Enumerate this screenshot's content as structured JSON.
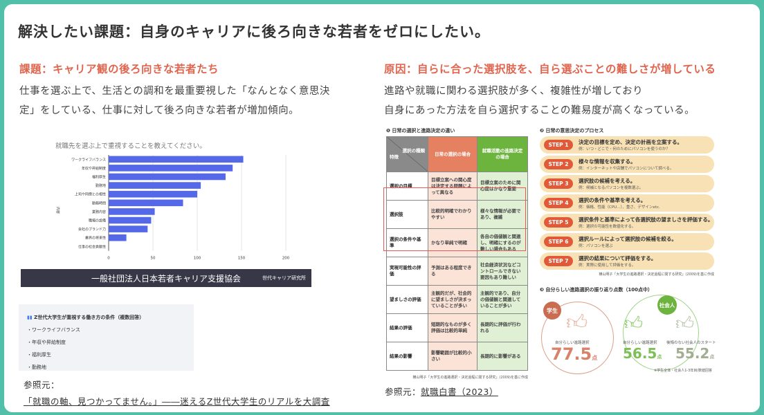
{
  "title": "解決したい課題：自身のキャリアに後ろ向きな若者をゼロにしたい。",
  "left": {
    "heading": "課題：キャリア観の後ろ向きな若者たち",
    "body": [
      "仕事を選ぶ上で、生活との調和を最重要視した「なんとなく意思決",
      "定」をしている、仕事に対して後ろ向きな若者が増加傾向。"
    ],
    "banner": "一般社団法人日本若者キャリア支援協会",
    "banner_logo": "世代キャリア研究所",
    "box": {
      "title": "Z世代大学生が重視する働き方の条件（複数回答）",
      "items": [
        "・ワークライフバランス",
        "・年収や昇給制度",
        "・福利厚生",
        "・勤務地"
      ]
    },
    "ref_label": "参照元：",
    "ref_link": "「就職の軸、見つかってません。」――迷えるZ世代大学生のリアルを大調査"
  },
  "chart_data": {
    "type": "bar",
    "orientation": "horizontal",
    "title": "就職先を選ぶ上で重視することを教えてください。",
    "ylabel": "内容",
    "xlabel": "",
    "categories": [
      "ワークライフバランス",
      "年収や昇給制度",
      "福利厚生",
      "勤務地",
      "上司や同僚との相性",
      "勤務時間",
      "業務内容",
      "職場の設備",
      "会社のブランド力",
      "業界の将来性",
      "仕事の社会貢献性"
    ],
    "values": [
      152,
      140,
      132,
      104,
      100,
      84,
      52,
      48,
      44,
      20,
      0
    ],
    "xlim": [
      0,
      200
    ],
    "xticks": [
      0,
      50,
      100,
      150,
      200
    ],
    "color": "#5468e8",
    "grid": true
  },
  "right": {
    "heading": "原因：自らに合った選択肢を、自ら選ぶことの難しさが増している",
    "body": [
      "進路や就職に関わる選択肢が多く、複雑性が増しており",
      "自身にあった方法を自ら選択することの難易度が高くなっている。"
    ],
    "table": {
      "caption": "❶ 日常の選択と進路決定の違い",
      "corner_top": "選択の種類",
      "corner_bottom": "特徴",
      "col1": "日常の選択の場合",
      "col2": "就職活動の進路決定の場合",
      "rows": [
        [
          "選択の目標",
          "目標立案への関心度は決定する問題によって異なる",
          "目標立案のために関心度はかなり重要"
        ],
        [
          "選択肢",
          "比較的明確でわかりやすい",
          "様々な情報が必要であり、複雑"
        ],
        [
          "選択の条件や基準",
          "かなり単純で明確",
          "各自の価値観と関連し、明確にするのが難しい場合もある"
        ],
        [
          "実現可能性の評価",
          "予測はある程度できる",
          "社会経済状況などコントロールできない要因もあり難しい"
        ],
        [
          "望ましさの評価",
          "主観的だが、社会的に望ましさが決まっていることが多い",
          "主観的であり、自分の価値観と関連していることが多い"
        ],
        [
          "結果の評価",
          "短期的なものが多く評価は比較的単純",
          "長期的に評価が行われる"
        ],
        [
          "結果の影響",
          "影響範囲が比較的小さい",
          "長期的に影響がある"
        ]
      ],
      "source": "横山明子「大学生の進路選択・決定過程に関する研究」(2009)を基に作成"
    },
    "steps": {
      "caption": "❷ 日常の意思決定のプロセス",
      "items": [
        {
          "label": "STEP 1",
          "main": "決定の目標を定め、決定の計画を立案する。",
          "ex": "例：いつ・どこで・何のためにパソコンを使うのか？"
        },
        {
          "label": "STEP 2",
          "main": "様々な情報を収集する。",
          "ex": "例：インターネットや店舗でパソコンについて調べる。"
        },
        {
          "label": "STEP 3",
          "main": "選択肢の候補を考える。",
          "ex": "例：候補となるパソコンを複数選ぶ。"
        },
        {
          "label": "STEP 4",
          "main": "選択の条件や基準を考える。",
          "ex": "例：価格、性能（CPU…）、重さ、デザインetc."
        },
        {
          "label": "STEP 5",
          "main": "選択条件と基準によって各選択肢の望ましさを評価する。",
          "ex": "例：選択の可能性を数値化する。"
        },
        {
          "label": "STEP 6",
          "main": "選択ルールによって選択肢の候補を絞る。",
          "ex": "例：パソコンを選ぶ"
        },
        {
          "label": "STEP 7",
          "main": "選択の結果について評価をする。",
          "ex": "例：実際に使用して評価をする。"
        }
      ],
      "source": "横山明子「大学生の進路選択・決定過程に関する研究」(2009)を基に作成"
    },
    "points": {
      "caption": "❸ 自分らしい進路選択の振り返り点数（100点中）",
      "student": {
        "badge": "学生",
        "label": "自分らしい進路選択",
        "score": "77.5",
        "unit": "点"
      },
      "worker": {
        "badge": "社会人",
        "label": "自分らしい進路選択",
        "score": "56.5",
        "unit": "点",
        "label2": "後悔のない社会人のスタート",
        "score2": "55.2"
      },
      "note": "※学生全体・社会人1-3年目/数値回答"
    },
    "ref_label": "参照元：",
    "ref_link": "就職白書（2023）"
  }
}
